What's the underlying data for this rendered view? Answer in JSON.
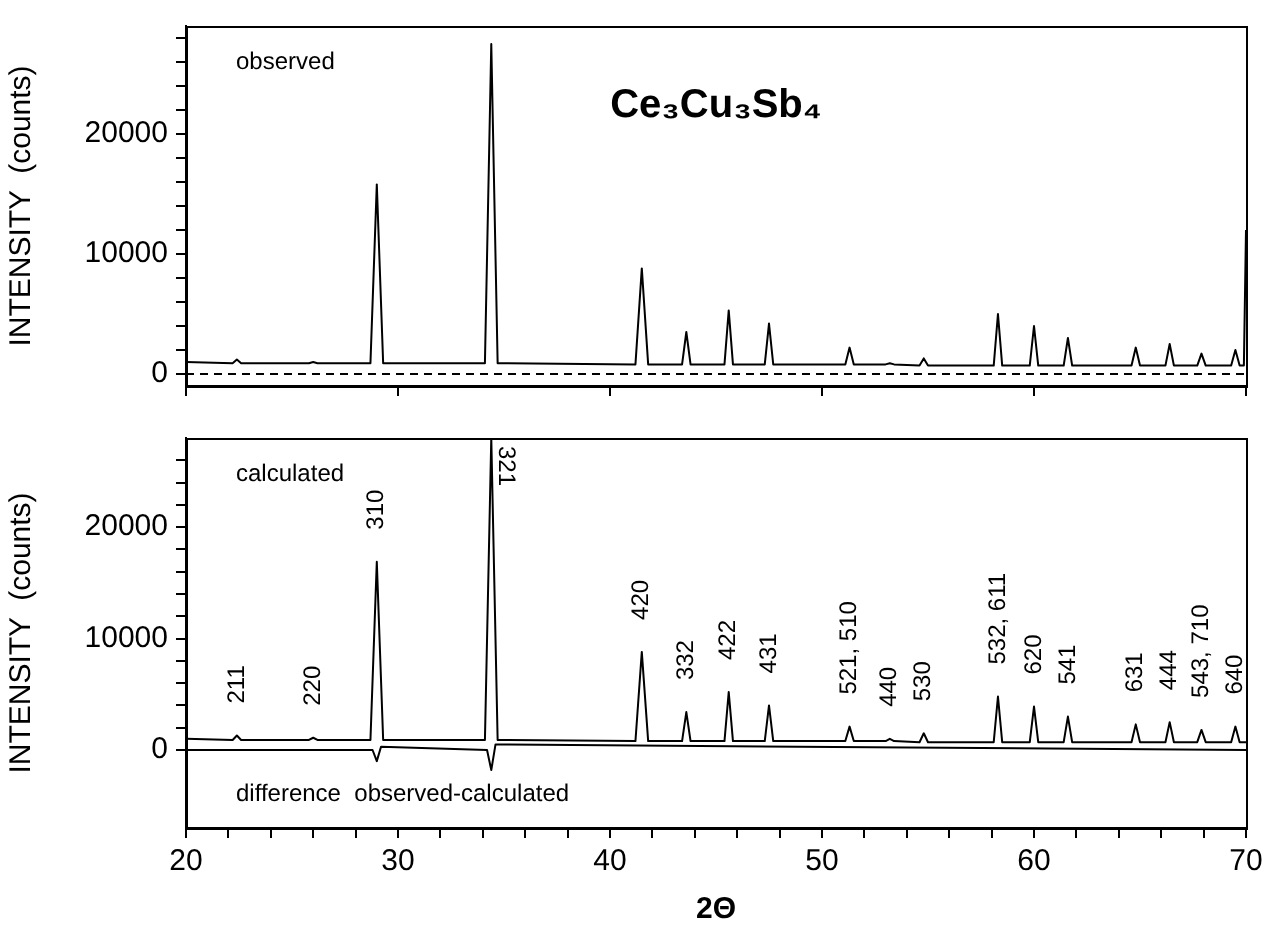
{
  "chart_data": [
    {
      "type": "line",
      "title": "Ce₃Cu₃Sb₄",
      "ylabel": "INTENSITY  (counts)",
      "annotations": [
        "observed"
      ],
      "xlim": [
        20,
        70
      ],
      "xticks": [
        20,
        30,
        40,
        50,
        60,
        70
      ],
      "ylim": [
        -1000,
        29000
      ],
      "yticks": [
        0,
        {
          "value": 2000,
          "label": null
        },
        {
          "value": 4000,
          "label": null
        },
        {
          "value": 6000,
          "label": null
        },
        {
          "value": 8000,
          "label": null
        },
        10000,
        {
          "value": 12000,
          "label": null
        },
        {
          "value": 14000,
          "label": null
        },
        {
          "value": 16000,
          "label": null
        },
        {
          "value": 18000,
          "label": null
        },
        20000,
        {
          "value": 22000,
          "label": null
        },
        {
          "value": 24000,
          "label": null
        },
        {
          "value": 26000,
          "label": null
        },
        {
          "value": 28000,
          "label": null
        }
      ],
      "tick_labels": "y",
      "legend": false,
      "grid": false,
      "marker": "none",
      "line_style": "solid",
      "ref_lines": [
        {
          "axis": "y",
          "value": 0,
          "color": "#000000",
          "line_style": "dashed"
        }
      ],
      "series": [
        {
          "color": "#000000",
          "x": [
            20,
            22.2,
            22.4,
            22.6,
            25.8,
            26.0,
            26.2,
            28.7,
            29.0,
            29.3,
            34.1,
            34.4,
            34.7,
            41.2,
            41.5,
            41.8,
            43.4,
            43.6,
            43.8,
            45.4,
            45.6,
            45.8,
            47.3,
            47.5,
            47.7,
            51.1,
            51.3,
            51.5,
            53.0,
            53.2,
            53.4,
            54.6,
            54.8,
            55.0,
            58.1,
            58.3,
            58.5,
            59.8,
            60.0,
            60.2,
            61.4,
            61.6,
            61.8,
            64.6,
            64.8,
            65.0,
            66.2,
            66.4,
            66.6,
            67.7,
            67.9,
            68.1,
            69.3,
            69.5,
            69.7,
            69.9,
            70
          ],
          "values": [
            1000,
            900,
            1200,
            900,
            900,
            1000,
            900,
            900,
            15800,
            900,
            900,
            27500,
            900,
            800,
            8800,
            800,
            800,
            3500,
            800,
            800,
            5300,
            800,
            800,
            4200,
            800,
            800,
            2200,
            800,
            800,
            900,
            800,
            700,
            1300,
            700,
            700,
            5000,
            700,
            700,
            4000,
            700,
            700,
            3000,
            700,
            700,
            2200,
            700,
            700,
            2500,
            700,
            700,
            1700,
            700,
            700,
            2000,
            700,
            700,
            12000
          ]
        }
      ]
    },
    {
      "type": "line",
      "xlabel": "2Θ",
      "ylabel": "INTENSITY  (counts)",
      "annotations": [
        "calculated",
        "difference  observed-calculated",
        {
          "text": "211",
          "x": 22.4,
          "y": 1300
        },
        {
          "text": "220",
          "x": 26.0,
          "y": 1100
        },
        {
          "text": "310",
          "x": 29.0,
          "y": 16900
        },
        {
          "text": "321",
          "x": 34.4,
          "y": 28000
        },
        {
          "text": "420",
          "x": 41.5,
          "y": 8800
        },
        {
          "text": "332",
          "x": 43.6,
          "y": 3400
        },
        {
          "text": "422",
          "x": 45.6,
          "y": 5200
        },
        {
          "text": "431",
          "x": 47.5,
          "y": 4000
        },
        {
          "text": "521, 510",
          "x": 51.3,
          "y": 2100
        },
        {
          "text": "440",
          "x": 53.2,
          "y": 1000
        },
        {
          "text": "530",
          "x": 54.8,
          "y": 1500
        },
        {
          "text": "532, 611",
          "x": 58.3,
          "y": 4800
        },
        {
          "text": "620",
          "x": 60.0,
          "y": 3900
        },
        {
          "text": "541",
          "x": 61.6,
          "y": 3000
        },
        {
          "text": "631",
          "x": 64.8,
          "y": 2300
        },
        {
          "text": "444",
          "x": 66.4,
          "y": 2500
        },
        {
          "text": "543, 710",
          "x": 67.9,
          "y": 1800
        },
        {
          "text": "640",
          "x": 69.5,
          "y": 2100
        }
      ],
      "xlim": [
        20,
        70
      ],
      "xticks": [
        20,
        {
          "value": 22,
          "label": null
        },
        {
          "value": 24,
          "label": null
        },
        {
          "value": 26,
          "label": null
        },
        {
          "value": 28,
          "label": null
        },
        30,
        {
          "value": 32,
          "label": null
        },
        {
          "value": 34,
          "label": null
        },
        {
          "value": 36,
          "label": null
        },
        {
          "value": 38,
          "label": null
        },
        40,
        {
          "value": 42,
          "label": null
        },
        {
          "value": 44,
          "label": null
        },
        {
          "value": 46,
          "label": null
        },
        {
          "value": 48,
          "label": null
        },
        50,
        {
          "value": 52,
          "label": null
        },
        {
          "value": 54,
          "label": null
        },
        {
          "value": 56,
          "label": null
        },
        {
          "value": 58,
          "label": null
        },
        60,
        {
          "value": 62,
          "label": null
        },
        {
          "value": 64,
          "label": null
        },
        {
          "value": 66,
          "label": null
        },
        {
          "value": 68,
          "label": null
        },
        70
      ],
      "ylim": [
        -7000,
        28000
      ],
      "yticks": [
        0,
        {
          "value": 2000,
          "label": null
        },
        {
          "value": 4000,
          "label": null
        },
        {
          "value": 6000,
          "label": null
        },
        {
          "value": 8000,
          "label": null
        },
        10000,
        {
          "value": 12000,
          "label": null
        },
        {
          "value": 14000,
          "label": null
        },
        {
          "value": 16000,
          "label": null
        },
        {
          "value": 18000,
          "label": null
        },
        20000,
        {
          "value": 22000,
          "label": null
        },
        {
          "value": 24000,
          "label": null
        },
        {
          "value": 26000,
          "label": null
        }
      ],
      "legend": false,
      "grid": false,
      "marker": "none",
      "line_style": "solid",
      "series": [
        {
          "color": "#000000",
          "x": [
            20,
            22.2,
            22.4,
            22.6,
            25.8,
            26.0,
            26.2,
            28.7,
            29.0,
            29.3,
            34.1,
            34.4,
            34.7,
            41.2,
            41.5,
            41.8,
            43.4,
            43.6,
            43.8,
            45.4,
            45.6,
            45.8,
            47.3,
            47.5,
            47.7,
            51.1,
            51.3,
            51.5,
            53.0,
            53.2,
            53.4,
            54.6,
            54.8,
            55.0,
            58.1,
            58.3,
            58.5,
            59.8,
            60.0,
            60.2,
            61.4,
            61.6,
            61.8,
            64.6,
            64.8,
            65.0,
            66.2,
            66.4,
            66.6,
            67.7,
            67.9,
            68.1,
            69.3,
            69.5,
            69.7,
            70
          ],
          "values": [
            1000,
            900,
            1300,
            900,
            900,
            1100,
            900,
            900,
            16900,
            900,
            900,
            28000,
            900,
            800,
            8800,
            800,
            800,
            3400,
            800,
            800,
            5200,
            800,
            800,
            4000,
            800,
            800,
            2100,
            800,
            800,
            1000,
            800,
            700,
            1500,
            700,
            700,
            4800,
            700,
            700,
            3900,
            700,
            700,
            3000,
            700,
            700,
            2300,
            700,
            700,
            2500,
            700,
            700,
            1800,
            700,
            700,
            2100,
            700,
            700
          ]
        },
        {
          "color": "#000000",
          "x": [
            20,
            28.8,
            29.0,
            29.2,
            34.2,
            34.4,
            34.6,
            70
          ],
          "values": [
            0,
            0,
            -1000,
            300,
            0,
            -1800,
            500,
            0
          ]
        }
      ]
    }
  ]
}
